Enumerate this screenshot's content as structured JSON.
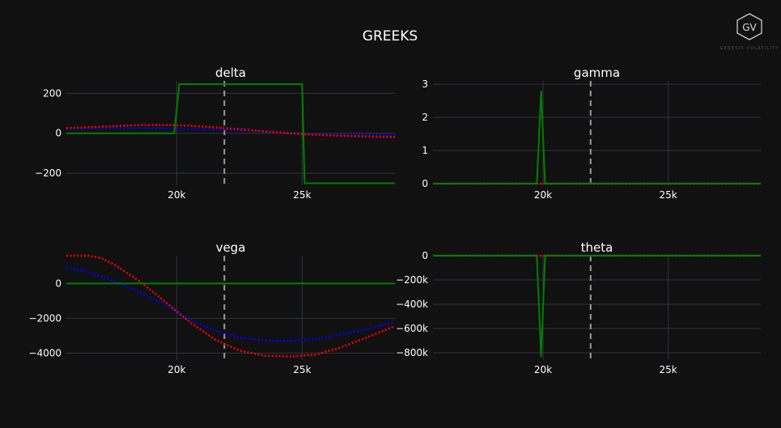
{
  "title": "GREEKS",
  "logo": {
    "initials": "GV",
    "caption": "GENESIS VOLATILITY",
    "icon": "hexagon-logo"
  },
  "colors": {
    "background": "#111111",
    "grid": "#2e3440",
    "text": "#ffffff",
    "spot": "#9a9a9a"
  },
  "chart_data": [
    {
      "type": "line",
      "title": "delta",
      "xlim": [
        15600,
        28700
      ],
      "ylim": [
        -260,
        262
      ],
      "xticks": [
        {
          "v": 20000,
          "label": "20k"
        },
        {
          "v": 25000,
          "label": "25k"
        }
      ],
      "yticks": [
        {
          "v": 200,
          "label": "200"
        },
        {
          "v": 0,
          "label": "0"
        },
        {
          "v": -200,
          "label": "−200"
        }
      ],
      "spot": 21900,
      "series": [
        {
          "color": "#0000ff",
          "style": "dotted",
          "x": [
            15600,
            16500,
            17500,
            18500,
            19500,
            20500,
            21500,
            22500,
            23500,
            24500,
            25500,
            26500,
            27500,
            28700
          ],
          "y": [
            22,
            24,
            26,
            26,
            25,
            23,
            20,
            14,
            8,
            2,
            -4,
            -6,
            -8,
            -9
          ]
        },
        {
          "color": "#ff0000",
          "style": "dotted",
          "x": [
            15600,
            16500,
            17500,
            18500,
            19500,
            20500,
            21500,
            22500,
            23500,
            24500,
            25500,
            26500,
            27500,
            28700
          ],
          "y": [
            26,
            30,
            36,
            41,
            42,
            38,
            30,
            20,
            10,
            0,
            -7,
            -12,
            -16,
            -19
          ]
        },
        {
          "color": "#008000",
          "style": "solid",
          "x": [
            15600,
            19900,
            20100,
            25000,
            25100,
            28700
          ],
          "y": [
            0,
            0,
            246,
            246,
            -250,
            -250
          ]
        }
      ]
    },
    {
      "type": "line",
      "title": "gamma",
      "xlim": [
        15600,
        28700
      ],
      "ylim": [
        -0.05,
        3.1
      ],
      "xticks": [
        {
          "v": 20000,
          "label": "20k"
        },
        {
          "v": 25000,
          "label": "25k"
        }
      ],
      "yticks": [
        {
          "v": 3,
          "label": "3"
        },
        {
          "v": 2,
          "label": "2"
        },
        {
          "v": 1,
          "label": "1"
        },
        {
          "v": 0,
          "label": "0"
        }
      ],
      "spot": 21900,
      "series": [
        {
          "color": "#0000ff",
          "style": "dotted",
          "x": [
            15600,
            28700
          ],
          "y": [
            0,
            0
          ]
        },
        {
          "color": "#ff0000",
          "style": "dotted",
          "x": [
            15600,
            28700
          ],
          "y": [
            0,
            0
          ]
        },
        {
          "color": "#008000",
          "style": "solid",
          "x": [
            15600,
            19750,
            19920,
            20080,
            28700
          ],
          "y": [
            0,
            0,
            2.78,
            0,
            0
          ]
        }
      ]
    },
    {
      "type": "line",
      "title": "vega",
      "xlim": [
        15600,
        28700
      ],
      "ylim": [
        -4400,
        1600
      ],
      "xticks": [
        {
          "v": 20000,
          "label": "20k"
        },
        {
          "v": 25000,
          "label": "25k"
        }
      ],
      "yticks": [
        {
          "v": 0,
          "label": "0"
        },
        {
          "v": -2000,
          "label": "−2000"
        },
        {
          "v": -4000,
          "label": "−4000"
        }
      ],
      "spot": 21900,
      "series": [
        {
          "color": "#0000ff",
          "style": "dotted",
          "x": [
            15600,
            16500,
            17500,
            18500,
            19500,
            20500,
            21500,
            22500,
            23500,
            24500,
            25500,
            26500,
            27500,
            28700
          ],
          "y": [
            950,
            650,
            130,
            -500,
            -1200,
            -2050,
            -2700,
            -3100,
            -3280,
            -3300,
            -3200,
            -2950,
            -2650,
            -2200
          ]
        },
        {
          "color": "#ff0000",
          "style": "dotted",
          "x": [
            15600,
            16500,
            17000,
            17500,
            18500,
            19500,
            20500,
            21500,
            22500,
            23500,
            24500,
            25500,
            26500,
            27500,
            28700
          ],
          "y": [
            1600,
            1600,
            1450,
            1100,
            150,
            -1000,
            -2200,
            -3200,
            -3850,
            -4150,
            -4200,
            -4100,
            -3700,
            -3150,
            -2450
          ]
        },
        {
          "color": "#008000",
          "style": "solid",
          "x": [
            15600,
            28700
          ],
          "y": [
            0,
            0
          ]
        }
      ]
    },
    {
      "type": "line",
      "title": "theta",
      "xlim": [
        15600,
        28700
      ],
      "ylim": [
        -860000,
        0
      ],
      "xticks": [
        {
          "v": 20000,
          "label": "20k"
        },
        {
          "v": 25000,
          "label": "25k"
        }
      ],
      "yticks": [
        {
          "v": 0,
          "label": "0"
        },
        {
          "v": -200000,
          "label": "−200k"
        },
        {
          "v": -400000,
          "label": "−400k"
        },
        {
          "v": -600000,
          "label": "−600k"
        },
        {
          "v": -800000,
          "label": "−800k"
        }
      ],
      "spot": 21900,
      "series": [
        {
          "color": "#0000ff",
          "style": "dotted",
          "x": [
            15600,
            28700
          ],
          "y": [
            0,
            0
          ]
        },
        {
          "color": "#ff0000",
          "style": "dotted",
          "x": [
            15600,
            28700
          ],
          "y": [
            0,
            0
          ]
        },
        {
          "color": "#008000",
          "style": "solid",
          "x": [
            15600,
            19750,
            19920,
            20080,
            28700
          ],
          "y": [
            0,
            0,
            -830000,
            0,
            0
          ]
        }
      ]
    }
  ]
}
